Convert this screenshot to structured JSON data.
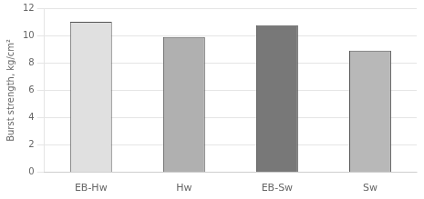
{
  "chart_data": {
    "type": "bar",
    "categories": [
      "EB-Hw",
      "Hw",
      "EB-Sw",
      "Sw"
    ],
    "values": [
      11.0,
      9.9,
      10.75,
      8.9
    ],
    "colors": [
      "#e0e0e0",
      "#b0b0b0",
      "#787878",
      "#b8b8b8"
    ],
    "ylabel": "Burst strength, kg/cm²",
    "ylim": [
      0,
      12
    ],
    "yticks": [
      0,
      2,
      4,
      6,
      8,
      10,
      12
    ],
    "grid": true
  }
}
